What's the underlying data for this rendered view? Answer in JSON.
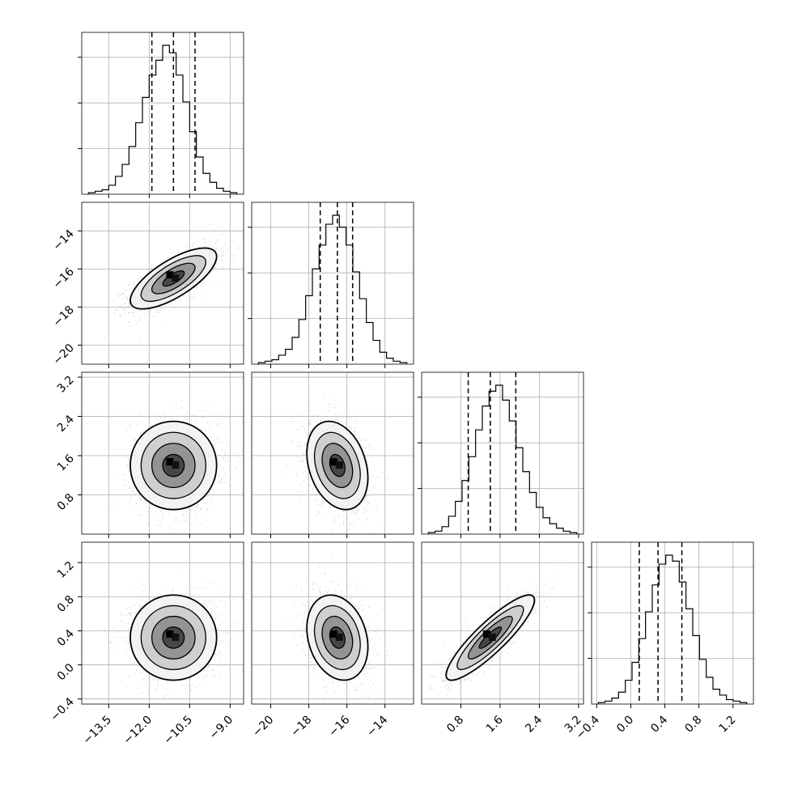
{
  "chart_data": {
    "type": "corner",
    "n_params": 4,
    "axes": [
      {
        "range": [
          -14.5,
          -8.5
        ],
        "ticks": [
          -13.5,
          -12.0,
          -10.5,
          -9.0
        ],
        "tick_labels": [
          "−13.5",
          "−12.0",
          "−10.5",
          "−9.0"
        ]
      },
      {
        "range": [
          -21.0,
          -12.5
        ],
        "ticks": [
          -20,
          -18,
          -16,
          -14
        ],
        "tick_labels": [
          "−20",
          "−18",
          "−16",
          "−14"
        ]
      },
      {
        "range": [
          0.0,
          3.3
        ],
        "ticks": [
          0.8,
          1.6,
          2.4,
          3.2
        ],
        "tick_labels": [
          "0.8",
          "1.6",
          "2.4",
          "3.2"
        ]
      },
      {
        "range": [
          -0.46,
          1.44
        ],
        "ticks": [
          -0.4,
          0.0,
          0.4,
          0.8,
          1.2
        ],
        "tick_labels": [
          "−0.4",
          "0.0",
          "0.4",
          "0.8",
          "1.2"
        ]
      }
    ],
    "marginals": [
      {
        "quantiles": [
          -11.9,
          -11.1,
          -10.3
        ],
        "hist": [
          1,
          2,
          3,
          6,
          12,
          20,
          32,
          48,
          65,
          80,
          90,
          100,
          95,
          80,
          62,
          42,
          25,
          14,
          8,
          4,
          2,
          1
        ]
      },
      {
        "quantiles": [
          -17.4,
          -16.5,
          -15.7
        ],
        "hist": [
          1,
          2,
          3,
          6,
          10,
          18,
          30,
          46,
          64,
          80,
          94,
          100,
          92,
          80,
          62,
          44,
          28,
          16,
          8,
          4,
          2,
          1
        ]
      },
      {
        "quantiles": [
          0.95,
          1.4,
          1.92
        ],
        "hist": [
          1,
          2,
          5,
          12,
          22,
          36,
          52,
          70,
          86,
          96,
          100,
          90,
          76,
          58,
          42,
          28,
          18,
          11,
          7,
          4,
          2,
          1
        ]
      },
      {
        "quantiles": [
          0.1,
          0.32,
          0.6
        ],
        "hist": [
          1,
          2,
          4,
          8,
          16,
          28,
          44,
          62,
          80,
          94,
          100,
          96,
          82,
          64,
          46,
          30,
          18,
          10,
          6,
          3,
          2,
          1
        ]
      }
    ],
    "pairs": [
      {
        "row": 1,
        "col": 0,
        "center": [
          -11.1,
          -16.5
        ],
        "sigma": [
          0.8,
          0.8
        ],
        "corr": 0.72
      },
      {
        "row": 2,
        "col": 0,
        "center": [
          -11.1,
          1.4
        ],
        "sigma": [
          0.8,
          0.45
        ],
        "corr": 0.0
      },
      {
        "row": 2,
        "col": 1,
        "center": [
          -16.5,
          1.4
        ],
        "sigma": [
          0.8,
          0.45
        ],
        "corr": -0.28
      },
      {
        "row": 3,
        "col": 0,
        "center": [
          -11.1,
          0.32
        ],
        "sigma": [
          0.8,
          0.25
        ],
        "corr": 0.0
      },
      {
        "row": 3,
        "col": 1,
        "center": [
          -16.5,
          0.32
        ],
        "sigma": [
          0.8,
          0.25
        ],
        "corr": -0.22
      },
      {
        "row": 3,
        "col": 2,
        "center": [
          1.4,
          0.32
        ],
        "sigma": [
          0.45,
          0.25
        ],
        "corr": 0.88
      }
    ],
    "contour_levels_sigma": [
      0.5,
      1.0,
      1.5,
      2.0
    ],
    "grid": true,
    "colors": {
      "scatter": "#b0b0b0",
      "line": "#000000",
      "grid": "#b0b0b0"
    }
  }
}
